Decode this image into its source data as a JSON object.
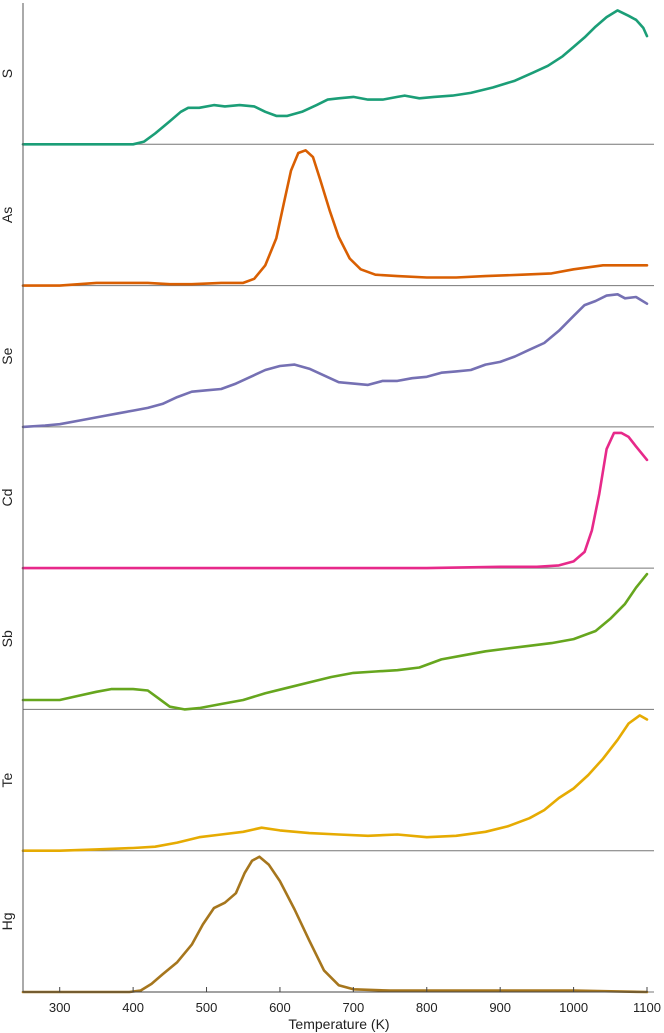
{
  "chart_data": {
    "type": "line",
    "xlabel": "Temperature (K)",
    "xlim": [
      250,
      1100
    ],
    "xticks": [
      300,
      400,
      500,
      600,
      700,
      800,
      900,
      1000,
      1100
    ],
    "grid": false,
    "series": [
      {
        "name": "S",
        "color": "#1b9e77",
        "values": [
          [
            250,
            0.0
          ],
          [
            300,
            0.0
          ],
          [
            360,
            0.0
          ],
          [
            400,
            0.0
          ],
          [
            415,
            0.02
          ],
          [
            430,
            0.08
          ],
          [
            450,
            0.17
          ],
          [
            465,
            0.24
          ],
          [
            475,
            0.27
          ],
          [
            490,
            0.27
          ],
          [
            510,
            0.29
          ],
          [
            525,
            0.28
          ],
          [
            545,
            0.29
          ],
          [
            565,
            0.28
          ],
          [
            580,
            0.24
          ],
          [
            595,
            0.21
          ],
          [
            610,
            0.21
          ],
          [
            630,
            0.24
          ],
          [
            650,
            0.29
          ],
          [
            665,
            0.33
          ],
          [
            680,
            0.34
          ],
          [
            700,
            0.35
          ],
          [
            720,
            0.33
          ],
          [
            740,
            0.33
          ],
          [
            760,
            0.35
          ],
          [
            770,
            0.36
          ],
          [
            790,
            0.34
          ],
          [
            810,
            0.35
          ],
          [
            835,
            0.36
          ],
          [
            860,
            0.38
          ],
          [
            890,
            0.42
          ],
          [
            920,
            0.47
          ],
          [
            945,
            0.53
          ],
          [
            965,
            0.58
          ],
          [
            985,
            0.65
          ],
          [
            1000,
            0.72
          ],
          [
            1015,
            0.79
          ],
          [
            1030,
            0.87
          ],
          [
            1045,
            0.94
          ],
          [
            1060,
            0.99
          ],
          [
            1075,
            0.95
          ],
          [
            1085,
            0.92
          ],
          [
            1095,
            0.86
          ],
          [
            1100,
            0.8
          ]
        ]
      },
      {
        "name": "As",
        "color": "#d95f02",
        "values": [
          [
            250,
            0.0
          ],
          [
            300,
            0.0
          ],
          [
            350,
            0.02
          ],
          [
            400,
            0.02
          ],
          [
            420,
            0.02
          ],
          [
            450,
            0.01
          ],
          [
            480,
            0.01
          ],
          [
            520,
            0.02
          ],
          [
            550,
            0.02
          ],
          [
            565,
            0.05
          ],
          [
            580,
            0.15
          ],
          [
            595,
            0.35
          ],
          [
            605,
            0.6
          ],
          [
            615,
            0.85
          ],
          [
            625,
            0.98
          ],
          [
            635,
            1.0
          ],
          [
            645,
            0.95
          ],
          [
            655,
            0.78
          ],
          [
            668,
            0.55
          ],
          [
            680,
            0.36
          ],
          [
            695,
            0.2
          ],
          [
            710,
            0.12
          ],
          [
            730,
            0.08
          ],
          [
            760,
            0.07
          ],
          [
            800,
            0.06
          ],
          [
            840,
            0.06
          ],
          [
            880,
            0.07
          ],
          [
            930,
            0.08
          ],
          [
            970,
            0.09
          ],
          [
            1000,
            0.12
          ],
          [
            1040,
            0.15
          ],
          [
            1070,
            0.15
          ],
          [
            1100,
            0.15
          ]
        ]
      },
      {
        "name": "Se",
        "color": "#7570b3",
        "values": [
          [
            250,
            0.0
          ],
          [
            280,
            0.01
          ],
          [
            300,
            0.02
          ],
          [
            330,
            0.05
          ],
          [
            360,
            0.08
          ],
          [
            380,
            0.1
          ],
          [
            400,
            0.12
          ],
          [
            420,
            0.14
          ],
          [
            440,
            0.17
          ],
          [
            460,
            0.22
          ],
          [
            480,
            0.26
          ],
          [
            500,
            0.27
          ],
          [
            520,
            0.28
          ],
          [
            540,
            0.32
          ],
          [
            560,
            0.37
          ],
          [
            580,
            0.42
          ],
          [
            600,
            0.45
          ],
          [
            620,
            0.46
          ],
          [
            640,
            0.43
          ],
          [
            660,
            0.38
          ],
          [
            680,
            0.33
          ],
          [
            700,
            0.32
          ],
          [
            720,
            0.31
          ],
          [
            740,
            0.34
          ],
          [
            760,
            0.34
          ],
          [
            780,
            0.36
          ],
          [
            800,
            0.37
          ],
          [
            820,
            0.4
          ],
          [
            840,
            0.41
          ],
          [
            860,
            0.42
          ],
          [
            880,
            0.46
          ],
          [
            900,
            0.48
          ],
          [
            920,
            0.52
          ],
          [
            940,
            0.57
          ],
          [
            960,
            0.62
          ],
          [
            980,
            0.71
          ],
          [
            1000,
            0.82
          ],
          [
            1015,
            0.9
          ],
          [
            1030,
            0.93
          ],
          [
            1045,
            0.97
          ],
          [
            1060,
            0.98
          ],
          [
            1070,
            0.95
          ],
          [
            1085,
            0.96
          ],
          [
            1100,
            0.91
          ]
        ]
      },
      {
        "name": "Cd",
        "color": "#e7298a",
        "values": [
          [
            250,
            0.0
          ],
          [
            400,
            0.0
          ],
          [
            600,
            0.0
          ],
          [
            800,
            0.0
          ],
          [
            900,
            0.01
          ],
          [
            950,
            0.01
          ],
          [
            980,
            0.02
          ],
          [
            1000,
            0.05
          ],
          [
            1015,
            0.12
          ],
          [
            1025,
            0.28
          ],
          [
            1035,
            0.55
          ],
          [
            1045,
            0.88
          ],
          [
            1055,
            1.0
          ],
          [
            1065,
            1.0
          ],
          [
            1075,
            0.97
          ],
          [
            1085,
            0.9
          ],
          [
            1100,
            0.8
          ]
        ]
      },
      {
        "name": "Sb",
        "color": "#66a61e",
        "values": [
          [
            250,
            0.07
          ],
          [
            300,
            0.07
          ],
          [
            325,
            0.1
          ],
          [
            350,
            0.13
          ],
          [
            370,
            0.15
          ],
          [
            400,
            0.15
          ],
          [
            420,
            0.14
          ],
          [
            435,
            0.08
          ],
          [
            450,
            0.02
          ],
          [
            470,
            0.0
          ],
          [
            490,
            0.01
          ],
          [
            520,
            0.04
          ],
          [
            550,
            0.07
          ],
          [
            580,
            0.12
          ],
          [
            610,
            0.16
          ],
          [
            640,
            0.2
          ],
          [
            670,
            0.24
          ],
          [
            700,
            0.27
          ],
          [
            730,
            0.28
          ],
          [
            760,
            0.29
          ],
          [
            790,
            0.31
          ],
          [
            820,
            0.37
          ],
          [
            850,
            0.4
          ],
          [
            880,
            0.43
          ],
          [
            910,
            0.45
          ],
          [
            940,
            0.47
          ],
          [
            970,
            0.49
          ],
          [
            1000,
            0.52
          ],
          [
            1030,
            0.58
          ],
          [
            1050,
            0.67
          ],
          [
            1070,
            0.78
          ],
          [
            1085,
            0.9
          ],
          [
            1100,
            1.0
          ]
        ]
      },
      {
        "name": "Te",
        "color": "#e6ab02",
        "values": [
          [
            250,
            0.0
          ],
          [
            300,
            0.0
          ],
          [
            350,
            0.01
          ],
          [
            400,
            0.02
          ],
          [
            430,
            0.03
          ],
          [
            460,
            0.06
          ],
          [
            490,
            0.1
          ],
          [
            520,
            0.12
          ],
          [
            550,
            0.14
          ],
          [
            575,
            0.17
          ],
          [
            600,
            0.15
          ],
          [
            640,
            0.13
          ],
          [
            680,
            0.12
          ],
          [
            720,
            0.11
          ],
          [
            760,
            0.12
          ],
          [
            800,
            0.1
          ],
          [
            840,
            0.11
          ],
          [
            880,
            0.14
          ],
          [
            910,
            0.18
          ],
          [
            940,
            0.24
          ],
          [
            960,
            0.3
          ],
          [
            980,
            0.39
          ],
          [
            1000,
            0.46
          ],
          [
            1020,
            0.56
          ],
          [
            1040,
            0.68
          ],
          [
            1060,
            0.82
          ],
          [
            1075,
            0.94
          ],
          [
            1090,
            1.0
          ],
          [
            1100,
            0.97
          ]
        ]
      },
      {
        "name": "Hg",
        "color": "#a6761d",
        "values": [
          [
            250,
            0.0
          ],
          [
            300,
            0.0
          ],
          [
            350,
            0.0
          ],
          [
            395,
            0.0
          ],
          [
            410,
            0.01
          ],
          [
            425,
            0.06
          ],
          [
            440,
            0.13
          ],
          [
            460,
            0.22
          ],
          [
            480,
            0.35
          ],
          [
            495,
            0.5
          ],
          [
            510,
            0.62
          ],
          [
            525,
            0.66
          ],
          [
            540,
            0.73
          ],
          [
            552,
            0.88
          ],
          [
            562,
            0.97
          ],
          [
            572,
            1.0
          ],
          [
            585,
            0.94
          ],
          [
            600,
            0.82
          ],
          [
            620,
            0.61
          ],
          [
            640,
            0.38
          ],
          [
            660,
            0.16
          ],
          [
            680,
            0.05
          ],
          [
            700,
            0.02
          ],
          [
            750,
            0.01
          ],
          [
            800,
            0.01
          ],
          [
            900,
            0.01
          ],
          [
            1000,
            0.01
          ],
          [
            1100,
            0.0
          ]
        ]
      }
    ]
  }
}
